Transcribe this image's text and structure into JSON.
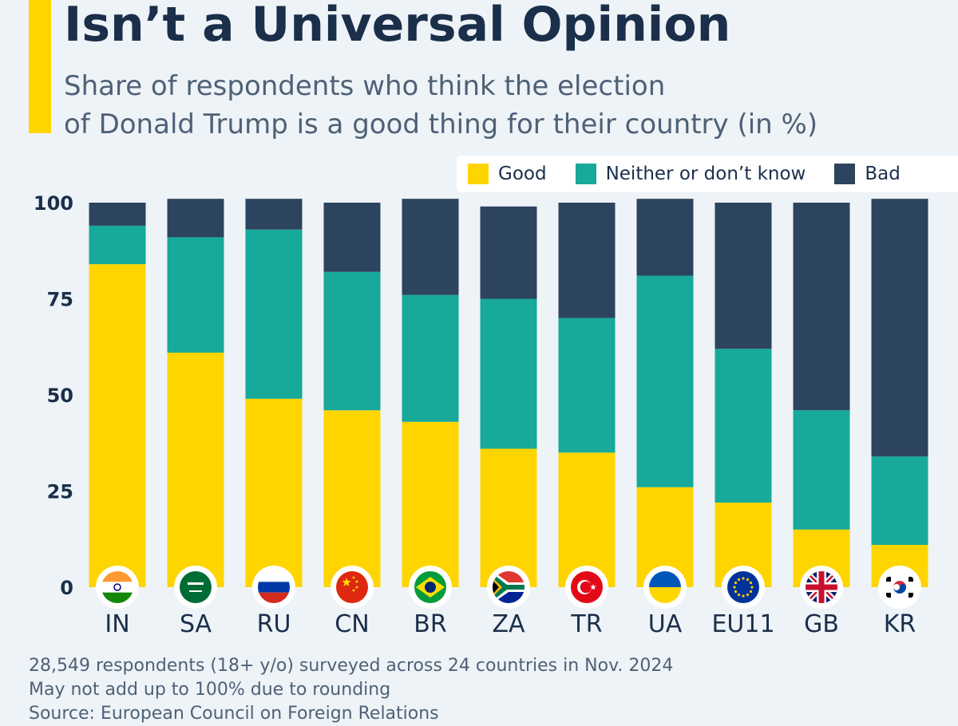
{
  "header": {
    "title": "Isn’t a Universal Opinion",
    "subtitle_line1": "Share of respondents who think the election",
    "subtitle_line2": "of Donald Trump is a good thing for their country (in %)"
  },
  "colors": {
    "accent": "#ffd500",
    "good": "#ffd500",
    "neither": "#17a999",
    "bad": "#2d445e"
  },
  "legend": [
    {
      "label": "Good",
      "color": "#ffd500"
    },
    {
      "label": "Neither or don’t know",
      "color": "#17a999"
    },
    {
      "label": "Bad",
      "color": "#2d445e"
    }
  ],
  "chart_data": {
    "type": "bar",
    "stacked": true,
    "categories": [
      "IN",
      "SA",
      "RU",
      "CN",
      "BR",
      "ZA",
      "TR",
      "UA",
      "EU11",
      "GB",
      "KR"
    ],
    "series": [
      {
        "name": "Good",
        "color": "#ffd500",
        "values": [
          84,
          61,
          49,
          46,
          43,
          36,
          35,
          26,
          22,
          15,
          11
        ]
      },
      {
        "name": "Neither or don’t know",
        "color": "#17a999",
        "values": [
          10,
          30,
          44,
          36,
          33,
          39,
          35,
          55,
          40,
          31,
          23
        ]
      },
      {
        "name": "Bad",
        "color": "#2d445e",
        "values": [
          6,
          10,
          8,
          18,
          25,
          24,
          30,
          20,
          38,
          54,
          67
        ]
      }
    ],
    "ylim": [
      0,
      100
    ],
    "yticks": [
      0,
      25,
      50,
      75,
      100
    ],
    "flags": [
      "india-flag-icon",
      "saudi-arabia-flag-icon",
      "russia-flag-icon",
      "china-flag-icon",
      "brazil-flag-icon",
      "south-africa-flag-icon",
      "turkey-flag-icon",
      "ukraine-flag-icon",
      "eu-flag-icon",
      "uk-flag-icon",
      "south-korea-flag-icon"
    ]
  },
  "notes": {
    "line1": "28,549 respondents (18+ y/o) surveyed across 24 countries in Nov. 2024",
    "line2": "May not add up to 100% due to rounding",
    "source": "Source: European Council on Foreign Relations"
  }
}
